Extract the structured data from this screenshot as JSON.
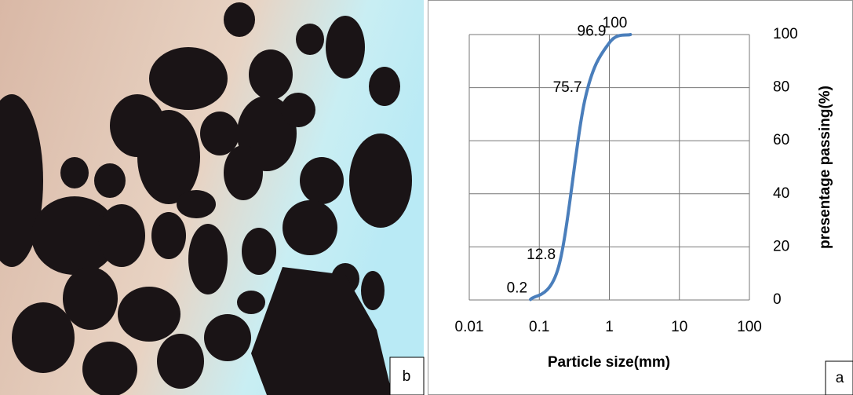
{
  "chart_data": {
    "type": "line",
    "xlabel": "Particle size(mm)",
    "ylabel": "presentage passing(%)",
    "x": [
      0.075,
      0.19,
      0.45,
      1,
      2
    ],
    "series": [
      {
        "color": "#4a7ebb",
        "values": [
          0.2,
          12.8,
          75.7,
          96.9,
          100
        ]
      }
    ],
    "xscale": "log",
    "xlim": [
      0.01,
      100
    ],
    "xticks": [
      0.01,
      0.1,
      1,
      10,
      100
    ],
    "ylim": [
      0,
      100
    ],
    "yticks": [
      0,
      20,
      40,
      60,
      80,
      100
    ],
    "grid": true
  },
  "panels": {
    "photo_label": "b",
    "chart_label": "a"
  }
}
